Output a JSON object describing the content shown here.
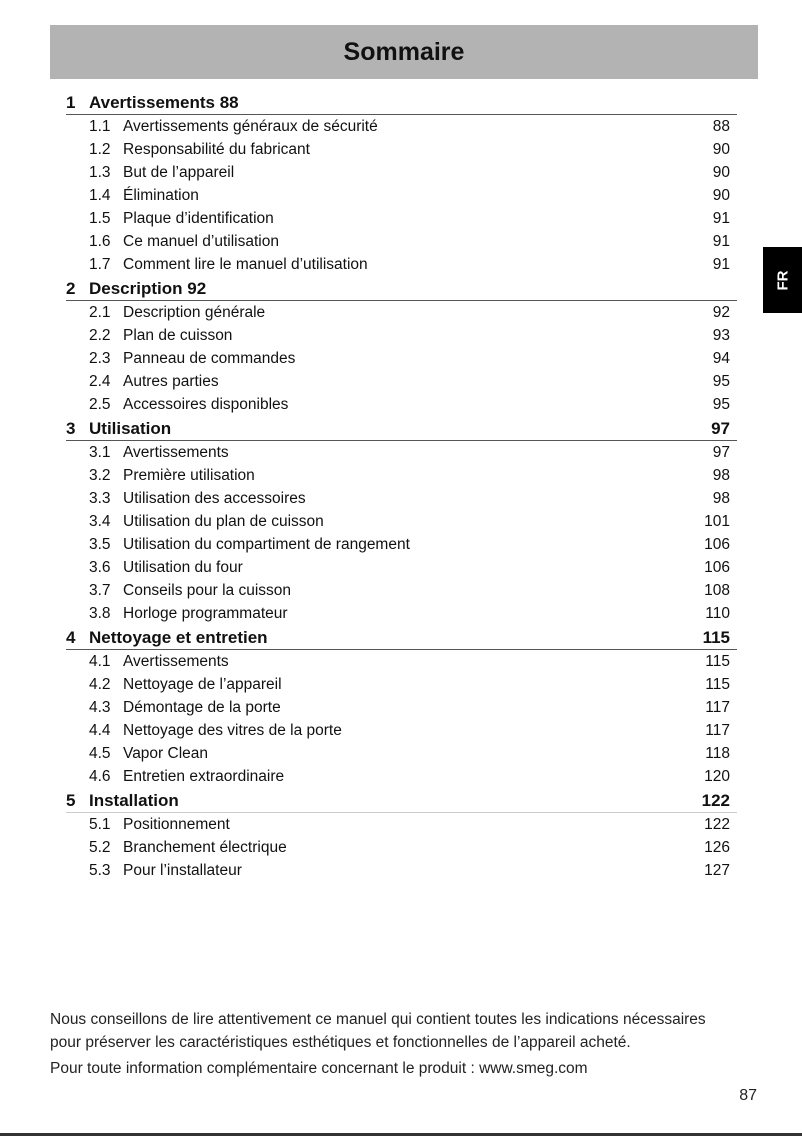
{
  "title": "Sommaire",
  "side_tab": "FR",
  "sections": [
    {
      "num": "1",
      "title": "Avertissements 88",
      "page": "",
      "items": [
        {
          "num": "1.1",
          "title": "Avertissements généraux de sécurité",
          "page": "88"
        },
        {
          "num": "1.2",
          "title": "Responsabilité du fabricant",
          "page": "90"
        },
        {
          "num": "1.3",
          "title": "But de l’appareil",
          "page": "90"
        },
        {
          "num": "1.4",
          "title": "Élimination",
          "page": "90"
        },
        {
          "num": "1.5",
          "title": "Plaque d’identification",
          "page": "91"
        },
        {
          "num": "1.6",
          "title": "Ce manuel d’utilisation",
          "page": "91"
        },
        {
          "num": "1.7",
          "title": "Comment lire le manuel d’utilisation",
          "page": "91"
        }
      ]
    },
    {
      "num": "2",
      "title": "Description 92",
      "page": "",
      "items": [
        {
          "num": "2.1",
          "title": "Description générale",
          "page": "92"
        },
        {
          "num": "2.2",
          "title": "Plan de cuisson",
          "page": "93"
        },
        {
          "num": "2.3",
          "title": "Panneau de commandes",
          "page": "94"
        },
        {
          "num": "2.4",
          "title": "Autres parties",
          "page": "95"
        },
        {
          "num": "2.5",
          "title": "Accessoires disponibles",
          "page": "95"
        }
      ]
    },
    {
      "num": "3",
      "title": "Utilisation",
      "page": "97",
      "items": [
        {
          "num": "3.1",
          "title": "Avertissements",
          "page": "97"
        },
        {
          "num": "3.2",
          "title": "Première utilisation",
          "page": "98"
        },
        {
          "num": "3.3",
          "title": "Utilisation des accessoires",
          "page": "98"
        },
        {
          "num": "3.4",
          "title": "Utilisation du plan de cuisson",
          "page": "101"
        },
        {
          "num": "3.5",
          "title": "Utilisation du compartiment de rangement",
          "page": "106"
        },
        {
          "num": "3.6",
          "title": "Utilisation du four",
          "page": "106"
        },
        {
          "num": "3.7",
          "title": "Conseils pour la cuisson",
          "page": "108"
        },
        {
          "num": "3.8",
          "title": "Horloge programmateur",
          "page": "110"
        }
      ]
    },
    {
      "num": "4",
      "title": "Nettoyage et entretien",
      "page": "115",
      "items": [
        {
          "num": "4.1",
          "title": "Avertissements",
          "page": "115"
        },
        {
          "num": "4.2",
          "title": "Nettoyage de l’appareil",
          "page": "115"
        },
        {
          "num": "4.3",
          "title": "Démontage de la porte",
          "page": "117"
        },
        {
          "num": "4.4",
          "title": "Nettoyage des vitres de la porte",
          "page": "117"
        },
        {
          "num": "4.5",
          "title": "Vapor Clean",
          "page": "118"
        },
        {
          "num": "4.6",
          "title": "Entretien extraordinaire",
          "page": "120"
        }
      ]
    },
    {
      "num": "5",
      "title": "Installation",
      "page": "122",
      "items": [
        {
          "num": "5.1",
          "title": "Positionnement",
          "page": "122"
        },
        {
          "num": "5.2",
          "title": "Branchement électrique",
          "page": "126"
        },
        {
          "num": "5.3",
          "title": "Pour l’installateur",
          "page": "127"
        }
      ]
    }
  ],
  "footer": {
    "line1": "Nous conseillons de lire attentivement ce manuel qui contient toutes les indications nécessaires",
    "line2": "pour préserver les caractéristiques esthétiques et fonctionnelles de l’appareil acheté.",
    "line3": "Pour toute information complémentaire concernant le produit : www.smeg.com"
  },
  "page_number": "87"
}
